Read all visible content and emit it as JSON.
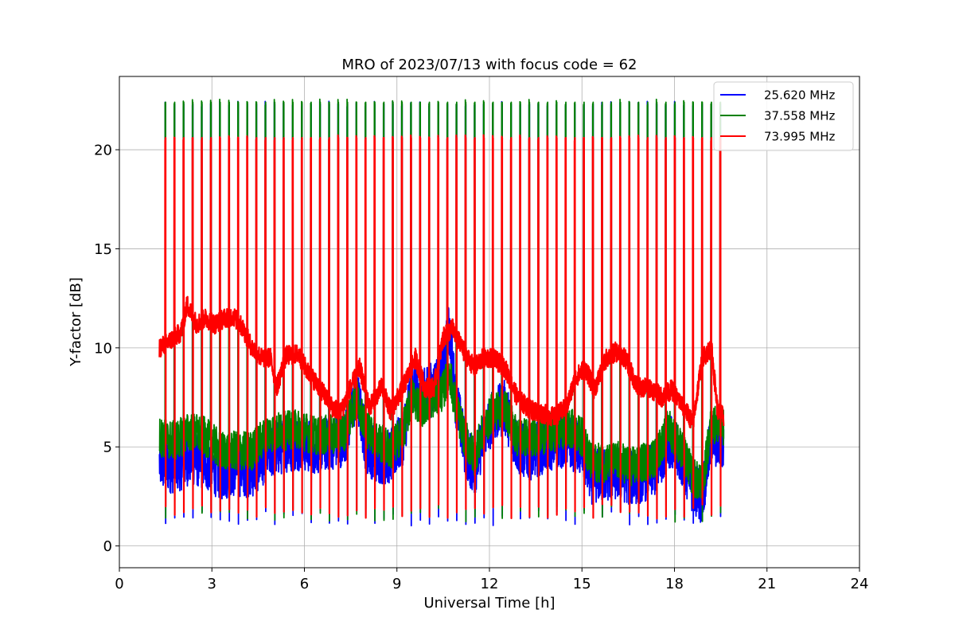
{
  "chart_data": {
    "type": "line",
    "title": "MRO of 2023/07/13 with focus code = 62",
    "xlabel": "Universal Time [h]",
    "ylabel": "Y-factor [dB]",
    "xlim": [
      0,
      24
    ],
    "ylim": [
      -1.1,
      23.7
    ],
    "x_ticks": [
      0,
      3,
      6,
      9,
      12,
      15,
      18,
      21,
      24
    ],
    "x_tick_labels": [
      "0",
      "3",
      "6",
      "9",
      "12",
      "15",
      "18",
      "21",
      "24"
    ],
    "y_ticks": [
      0,
      5,
      10,
      15,
      20
    ],
    "y_tick_labels": [
      "0",
      "5",
      "10",
      "15",
      "20"
    ],
    "grid": true,
    "legend_position": "top-right",
    "data_range_h": [
      1.3,
      19.6
    ],
    "calibration": {
      "first_h": 1.48,
      "period_h": 0.295,
      "width_h": 0.03,
      "count": 62
    },
    "series": [
      {
        "name": "25.620 MHz",
        "color": "#0000ff",
        "cal_peak": 22.3,
        "cal_min": 1.0,
        "baseline": [
          [
            1.3,
            4.2
          ],
          [
            1.8,
            4.0
          ],
          [
            2.3,
            4.5
          ],
          [
            2.8,
            4.2
          ],
          [
            3.3,
            3.7
          ],
          [
            3.8,
            3.9
          ],
          [
            4.3,
            3.8
          ],
          [
            4.8,
            4.7
          ],
          [
            5.3,
            5.0
          ],
          [
            5.8,
            5.2
          ],
          [
            6.3,
            5.0
          ],
          [
            6.8,
            5.2
          ],
          [
            7.3,
            5.4
          ],
          [
            7.7,
            7.8
          ],
          [
            8.0,
            5.0
          ],
          [
            8.4,
            4.5
          ],
          [
            8.8,
            4.5
          ],
          [
            9.2,
            5.5
          ],
          [
            9.5,
            8.3
          ],
          [
            9.8,
            7.5
          ],
          [
            10.2,
            8.0
          ],
          [
            10.5,
            9.0
          ],
          [
            10.7,
            11.0
          ],
          [
            10.9,
            7.5
          ],
          [
            11.2,
            5.0
          ],
          [
            11.5,
            3.8
          ],
          [
            11.8,
            5.5
          ],
          [
            12.1,
            6.5
          ],
          [
            12.5,
            7.0
          ],
          [
            12.9,
            5.0
          ],
          [
            13.3,
            4.7
          ],
          [
            13.7,
            5.0
          ],
          [
            14.2,
            5.3
          ],
          [
            14.6,
            5.3
          ],
          [
            15.0,
            4.8
          ],
          [
            15.3,
            3.5
          ],
          [
            15.7,
            3.6
          ],
          [
            16.2,
            3.7
          ],
          [
            16.6,
            3.4
          ],
          [
            17.0,
            3.6
          ],
          [
            17.4,
            3.9
          ],
          [
            17.8,
            5.4
          ],
          [
            18.2,
            4.5
          ],
          [
            18.6,
            3.0
          ],
          [
            18.9,
            2.5
          ],
          [
            19.2,
            5.5
          ],
          [
            19.6,
            5.0
          ]
        ]
      },
      {
        "name": "37.558 MHz",
        "color": "#008000",
        "cal_peak": 22.4,
        "cal_min": 1.2,
        "baseline": [
          [
            1.3,
            5.5
          ],
          [
            1.8,
            5.3
          ],
          [
            2.3,
            5.8
          ],
          [
            2.8,
            5.5
          ],
          [
            3.3,
            4.8
          ],
          [
            3.8,
            4.8
          ],
          [
            4.3,
            4.8
          ],
          [
            4.8,
            5.7
          ],
          [
            5.3,
            5.8
          ],
          [
            5.8,
            5.9
          ],
          [
            6.3,
            5.6
          ],
          [
            6.8,
            5.6
          ],
          [
            7.3,
            5.8
          ],
          [
            7.7,
            7.5
          ],
          [
            8.0,
            6.0
          ],
          [
            8.4,
            5.3
          ],
          [
            8.8,
            4.8
          ],
          [
            9.2,
            5.8
          ],
          [
            9.5,
            7.5
          ],
          [
            9.8,
            7.0
          ],
          [
            10.2,
            7.5
          ],
          [
            10.5,
            7.8
          ],
          [
            10.7,
            8.8
          ],
          [
            10.9,
            7.0
          ],
          [
            11.2,
            5.5
          ],
          [
            11.5,
            4.5
          ],
          [
            11.8,
            5.8
          ],
          [
            12.1,
            6.8
          ],
          [
            12.5,
            7.0
          ],
          [
            12.9,
            5.5
          ],
          [
            13.3,
            5.5
          ],
          [
            13.7,
            5.6
          ],
          [
            14.2,
            5.8
          ],
          [
            14.6,
            6.0
          ],
          [
            15.0,
            5.5
          ],
          [
            15.3,
            4.2
          ],
          [
            15.7,
            4.2
          ],
          [
            16.2,
            4.3
          ],
          [
            16.6,
            4.0
          ],
          [
            17.0,
            4.2
          ],
          [
            17.4,
            4.5
          ],
          [
            17.8,
            6.0
          ],
          [
            18.2,
            5.0
          ],
          [
            18.6,
            3.5
          ],
          [
            18.9,
            3.0
          ],
          [
            19.2,
            6.2
          ],
          [
            19.6,
            6.0
          ]
        ]
      },
      {
        "name": "73.995 MHz",
        "color": "#ff0000",
        "cal_peak": 20.6,
        "cal_min": 1.3,
        "baseline": [
          [
            1.3,
            10.0
          ],
          [
            1.6,
            10.3
          ],
          [
            2.0,
            10.8
          ],
          [
            2.2,
            12.2
          ],
          [
            2.5,
            11.2
          ],
          [
            2.8,
            11.5
          ],
          [
            3.1,
            11.2
          ],
          [
            3.4,
            11.5
          ],
          [
            3.7,
            11.6
          ],
          [
            4.0,
            11.0
          ],
          [
            4.3,
            10.0
          ],
          [
            4.6,
            9.5
          ],
          [
            4.9,
            9.5
          ],
          [
            5.1,
            8.0
          ],
          [
            5.4,
            9.6
          ],
          [
            5.8,
            9.7
          ],
          [
            6.1,
            8.8
          ],
          [
            6.5,
            8.0
          ],
          [
            6.9,
            7.0
          ],
          [
            7.2,
            6.8
          ],
          [
            7.5,
            8.0
          ],
          [
            7.8,
            9.0
          ],
          [
            8.1,
            7.0
          ],
          [
            8.5,
            8.0
          ],
          [
            8.8,
            6.8
          ],
          [
            9.2,
            8.0
          ],
          [
            9.6,
            9.5
          ],
          [
            9.9,
            8.0
          ],
          [
            10.2,
            8.0
          ],
          [
            10.5,
            10.5
          ],
          [
            10.8,
            11.0
          ],
          [
            11.1,
            10.0
          ],
          [
            11.5,
            9.0
          ],
          [
            11.8,
            9.5
          ],
          [
            12.1,
            9.5
          ],
          [
            12.5,
            9.0
          ],
          [
            12.9,
            7.5
          ],
          [
            13.3,
            6.9
          ],
          [
            13.7,
            6.7
          ],
          [
            14.1,
            6.5
          ],
          [
            14.5,
            7.0
          ],
          [
            14.8,
            8.5
          ],
          [
            15.1,
            9.0
          ],
          [
            15.4,
            7.9
          ],
          [
            15.8,
            9.5
          ],
          [
            16.1,
            9.8
          ],
          [
            16.4,
            9.5
          ],
          [
            16.8,
            8.0
          ],
          [
            17.2,
            8.0
          ],
          [
            17.6,
            7.5
          ],
          [
            17.9,
            7.9
          ],
          [
            18.3,
            7.0
          ],
          [
            18.6,
            6.2
          ],
          [
            18.9,
            9.5
          ],
          [
            19.2,
            10.0
          ],
          [
            19.4,
            6.8
          ],
          [
            19.6,
            6.5
          ]
        ]
      }
    ]
  }
}
